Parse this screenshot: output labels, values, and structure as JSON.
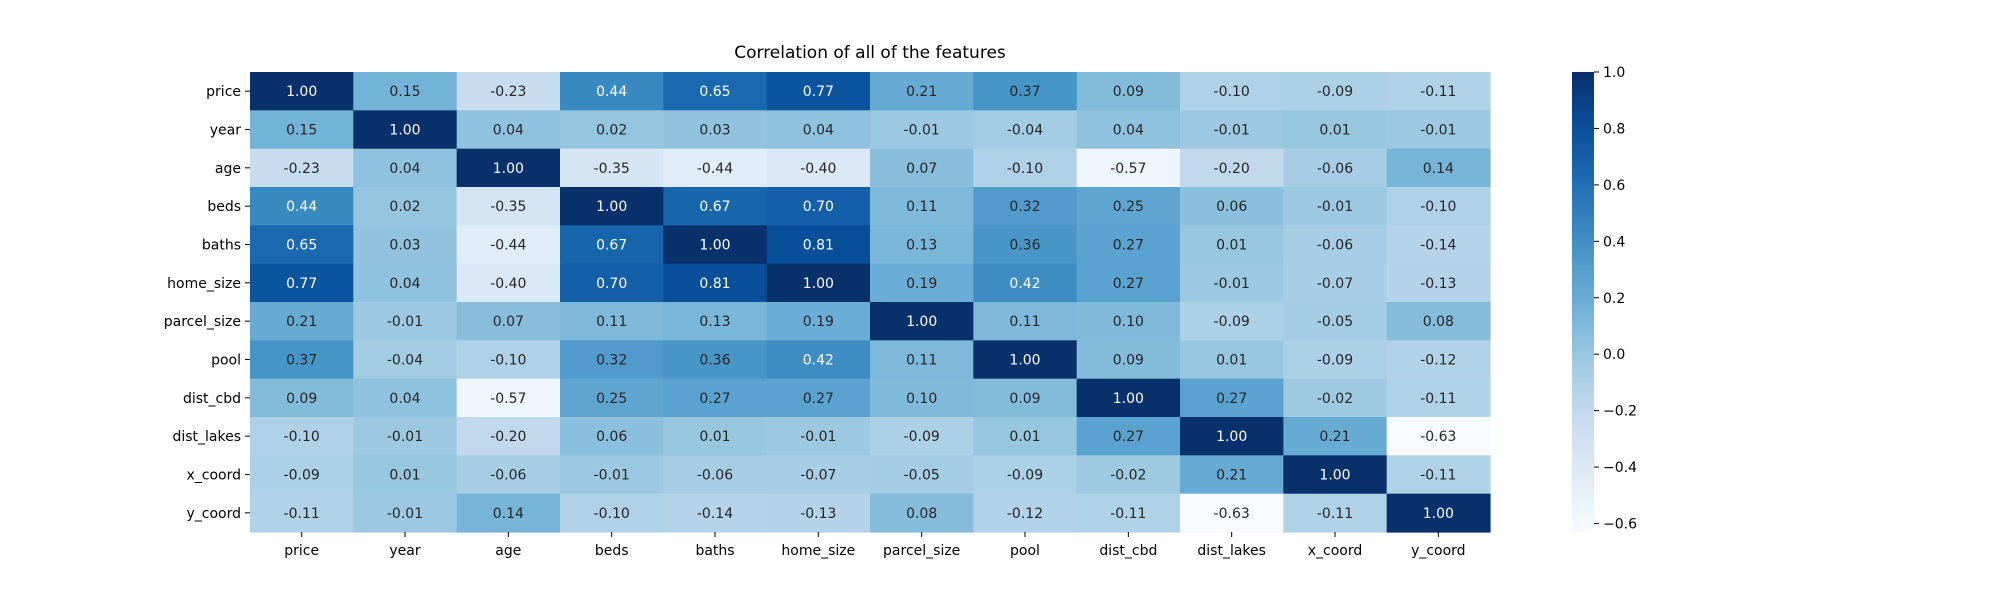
{
  "chart_data": {
    "type": "heatmap",
    "title": "Correlation of all of the features",
    "xlabel": "",
    "ylabel": "",
    "rows": [
      "price",
      "year",
      "age",
      "beds",
      "baths",
      "home_size",
      "parcel_size",
      "pool",
      "dist_cbd",
      "dist_lakes",
      "x_coord",
      "y_coord"
    ],
    "columns": [
      "price",
      "year",
      "age",
      "beds",
      "baths",
      "home_size",
      "parcel_size",
      "pool",
      "dist_cbd",
      "dist_lakes",
      "x_coord",
      "y_coord"
    ],
    "values": [
      [
        1.0,
        0.15,
        -0.23,
        0.44,
        0.65,
        0.77,
        0.21,
        0.37,
        0.09,
        -0.1,
        -0.09,
        -0.11
      ],
      [
        0.15,
        1.0,
        0.04,
        0.02,
        0.03,
        0.04,
        -0.01,
        -0.04,
        0.04,
        -0.01,
        0.01,
        -0.01
      ],
      [
        -0.23,
        0.04,
        1.0,
        -0.35,
        -0.44,
        -0.4,
        0.07,
        -0.1,
        -0.57,
        -0.2,
        -0.06,
        0.14
      ],
      [
        0.44,
        0.02,
        -0.35,
        1.0,
        0.67,
        0.7,
        0.11,
        0.32,
        0.25,
        0.06,
        -0.01,
        -0.1
      ],
      [
        0.65,
        0.03,
        -0.44,
        0.67,
        1.0,
        0.81,
        0.13,
        0.36,
        0.27,
        0.01,
        -0.06,
        -0.14
      ],
      [
        0.77,
        0.04,
        -0.4,
        0.7,
        0.81,
        1.0,
        0.19,
        0.42,
        0.27,
        -0.01,
        -0.07,
        -0.13
      ],
      [
        0.21,
        -0.01,
        0.07,
        0.11,
        0.13,
        0.19,
        1.0,
        0.11,
        0.1,
        -0.09,
        -0.05,
        0.08
      ],
      [
        0.37,
        -0.04,
        -0.1,
        0.32,
        0.36,
        0.42,
        0.11,
        1.0,
        0.09,
        0.01,
        -0.09,
        -0.12
      ],
      [
        0.09,
        0.04,
        -0.57,
        0.25,
        0.27,
        0.27,
        0.1,
        0.09,
        1.0,
        0.27,
        -0.02,
        -0.11
      ],
      [
        -0.1,
        -0.01,
        -0.2,
        0.06,
        0.01,
        -0.01,
        -0.09,
        0.01,
        0.27,
        1.0,
        0.21,
        -0.63
      ],
      [
        -0.09,
        0.01,
        -0.06,
        -0.01,
        -0.06,
        -0.07,
        -0.05,
        -0.09,
        -0.02,
        0.21,
        1.0,
        -0.11
      ],
      [
        -0.11,
        -0.01,
        0.14,
        -0.1,
        -0.14,
        -0.13,
        0.08,
        -0.12,
        -0.11,
        -0.63,
        -0.11,
        1.0
      ]
    ],
    "value_format": "2 decimals",
    "colormap": "Blues",
    "vmin": -0.63,
    "vmax": 1.0,
    "colorbar": {
      "ticks": [
        1.0,
        0.8,
        0.6,
        0.4,
        0.2,
        0.0,
        -0.2,
        -0.4,
        -0.6
      ],
      "tick_labels": [
        "1.0",
        "0.8",
        "0.6",
        "0.4",
        "0.2",
        "0.0",
        "−0.2",
        "−0.4",
        "−0.6"
      ],
      "placement": "right"
    },
    "grid": false
  }
}
